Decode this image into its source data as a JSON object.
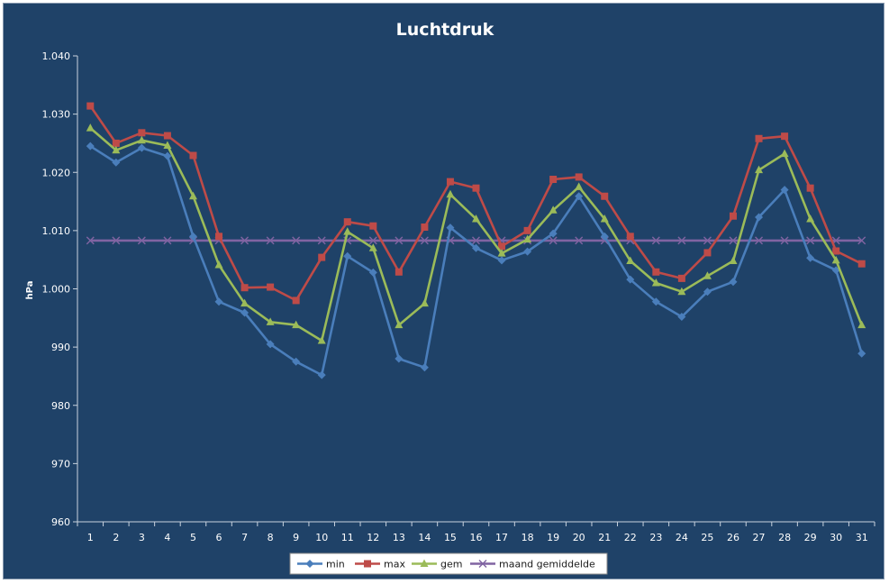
{
  "chart_data": {
    "type": "line",
    "title": "Luchtdruk",
    "xlabel": "",
    "ylabel": "hPa",
    "ylim": [
      960,
      1040
    ],
    "ytick_values": [
      960,
      970,
      980,
      990,
      1000,
      1010,
      1020,
      1030,
      1040
    ],
    "ytick_labels": [
      "960",
      "970",
      "980",
      "990",
      "1.000",
      "1.010",
      "1.020",
      "1.030",
      "1.040"
    ],
    "categories": [
      "1",
      "2",
      "3",
      "4",
      "5",
      "6",
      "7",
      "8",
      "9",
      "10",
      "11",
      "12",
      "13",
      "14",
      "15",
      "16",
      "17",
      "18",
      "19",
      "20",
      "21",
      "22",
      "23",
      "24",
      "25",
      "26",
      "27",
      "28",
      "29",
      "30",
      "31"
    ],
    "grid": false,
    "legend_position": "bottom",
    "series": [
      {
        "name": "min",
        "color": "#4a7ebb",
        "marker": "diamond",
        "values": [
          1024.5,
          1021.7,
          1024.2,
          1022.8,
          1009.0,
          997.8,
          995.9,
          990.5,
          987.5,
          985.2,
          1005.6,
          1002.8,
          988.0,
          986.5,
          1010.5,
          1007.0,
          1004.9,
          1006.4,
          1009.5,
          1015.9,
          1009.0,
          1001.6,
          997.8,
          995.2,
          999.5,
          1001.2,
          1012.3,
          1017.0,
          1005.3,
          1003.2,
          988.9
        ]
      },
      {
        "name": "max",
        "color": "#be4b48",
        "marker": "square",
        "values": [
          1031.4,
          1025.0,
          1026.8,
          1026.3,
          1022.9,
          1009.0,
          1000.2,
          1000.3,
          998.0,
          1005.4,
          1011.5,
          1010.8,
          1002.9,
          1010.6,
          1018.4,
          1017.3,
          1007.3,
          1010.0,
          1018.8,
          1019.2,
          1015.9,
          1009.0,
          1002.9,
          1001.8,
          1006.2,
          1012.5,
          1025.8,
          1026.2,
          1017.3,
          1006.5,
          1004.3
        ]
      },
      {
        "name": "gem",
        "color": "#9bbb59",
        "marker": "triangle",
        "values": [
          1027.6,
          1023.8,
          1025.5,
          1024.6,
          1015.9,
          1004.1,
          997.5,
          994.3,
          993.8,
          991.1,
          1009.8,
          1007.0,
          993.8,
          997.5,
          1016.2,
          1012.0,
          1006.1,
          1008.5,
          1013.5,
          1017.5,
          1012.0,
          1004.8,
          1001.0,
          999.5,
          1002.2,
          1004.8,
          1020.4,
          1023.2,
          1012.0,
          1004.9,
          993.8
        ]
      },
      {
        "name": "maand gemiddelde",
        "color": "#8064a2",
        "marker": "x",
        "values": [
          1008.3,
          1008.3,
          1008.3,
          1008.3,
          1008.3,
          1008.3,
          1008.3,
          1008.3,
          1008.3,
          1008.3,
          1008.3,
          1008.3,
          1008.3,
          1008.3,
          1008.3,
          1008.3,
          1008.3,
          1008.3,
          1008.3,
          1008.3,
          1008.3,
          1008.3,
          1008.3,
          1008.3,
          1008.3,
          1008.3,
          1008.3,
          1008.3,
          1008.3,
          1008.3,
          1008.3
        ]
      }
    ]
  }
}
